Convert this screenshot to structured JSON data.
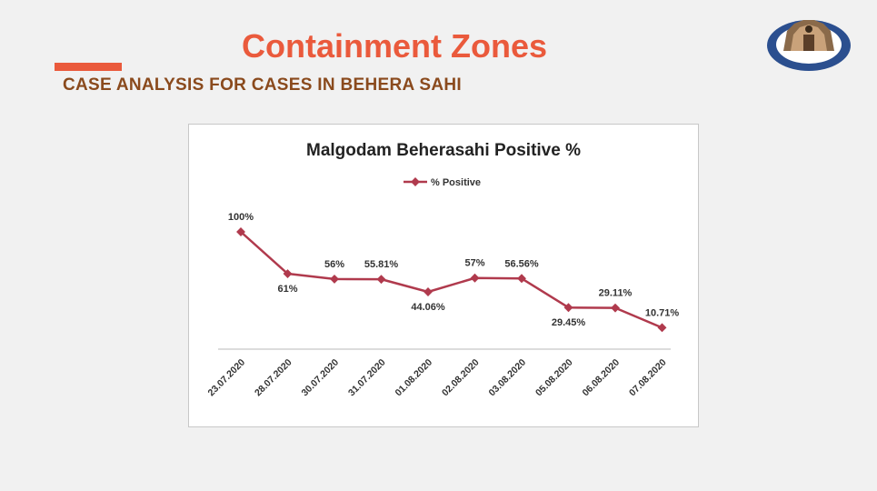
{
  "slide": {
    "title": "Containment Zones",
    "subtitle": "CASE ANALYSIS FOR CASES IN BEHERA SAHI"
  },
  "colors": {
    "title": "#ea5a3c",
    "subtitle": "#8a4a1d",
    "series": "#b03a4d"
  },
  "chart_data": {
    "type": "line",
    "title": "Malgodam Beherasahi Positive %",
    "xlabel": "",
    "ylabel": "",
    "ylim": [
      0,
      100
    ],
    "legend": "top",
    "grid": false,
    "categories": [
      "23.07.2020",
      "28.07.2020",
      "30.07.2020",
      "31.07.2020",
      "01.08.2020",
      "02.08.2020",
      "03.08.2020",
      "05.08.2020",
      "06.08.2020",
      "07.08.2020"
    ],
    "series": [
      {
        "name": "% Positive",
        "values": [
          100,
          61,
          56,
          55.81,
          44.06,
          57,
          56.56,
          29.45,
          29.11,
          10.71
        ],
        "labels": [
          "100%",
          "61%",
          "56%",
          "55.81%",
          "44.06%",
          "57%",
          "56.56%",
          "29.45%",
          "29.11%",
          "10.71%"
        ]
      }
    ]
  }
}
